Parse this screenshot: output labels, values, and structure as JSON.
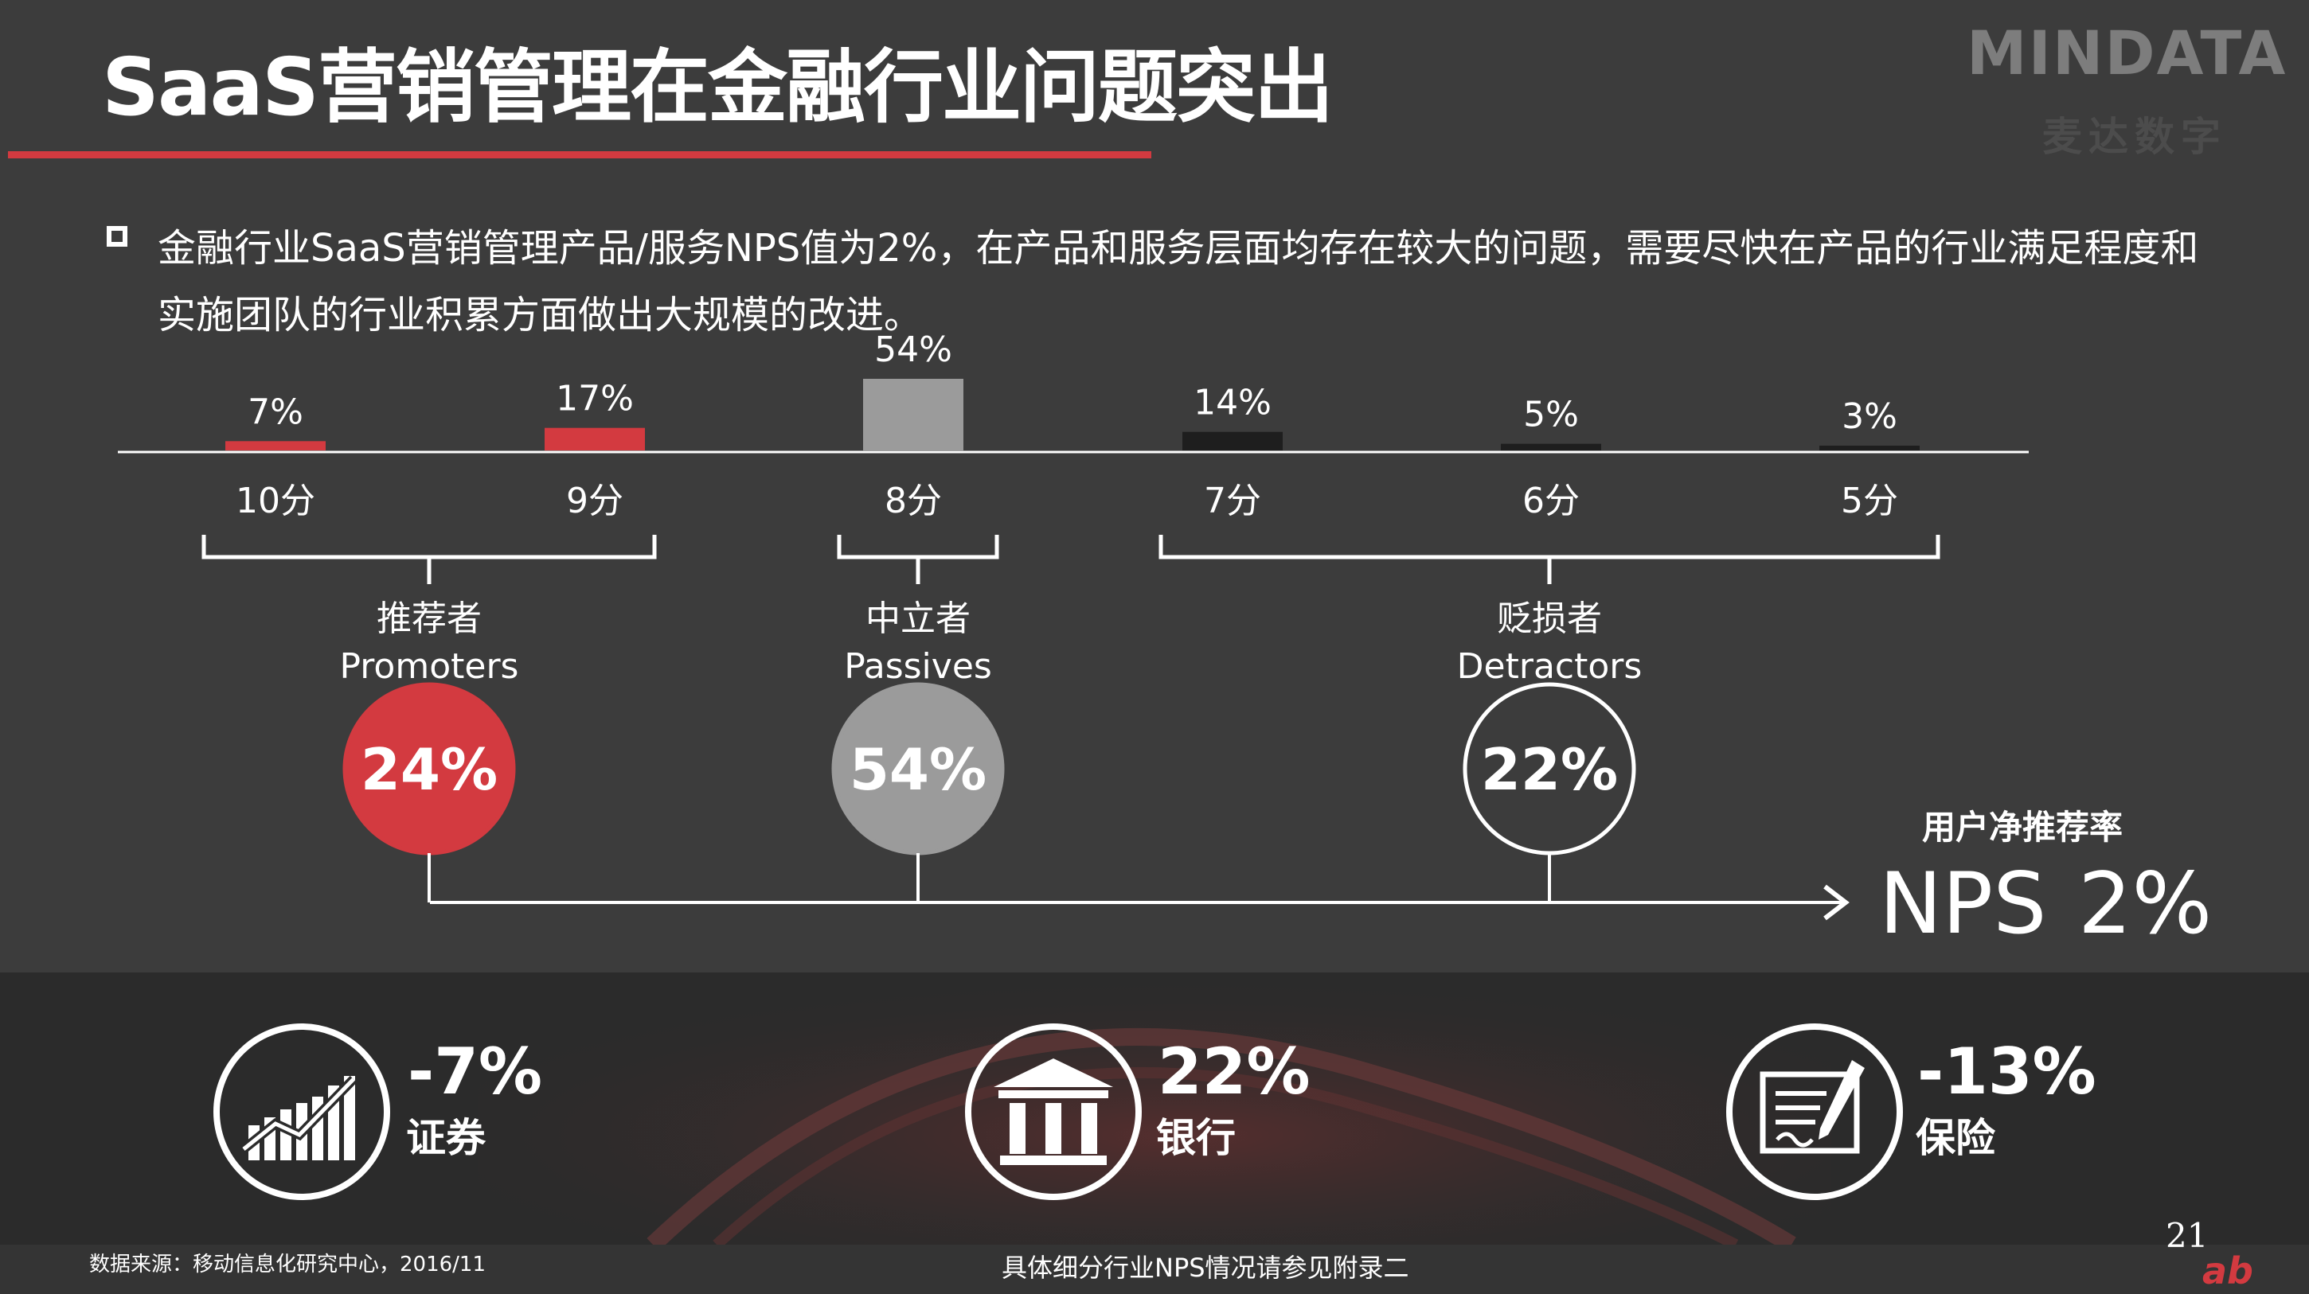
{
  "slide": {
    "title": "SaaS营销管理在金融行业问题突出",
    "page_number": "21",
    "corner_mark": "ab"
  },
  "logo": {
    "text": "MINDATA",
    "subtitle": "麦达数字"
  },
  "bullet": {
    "text": "金融行业SaaS营销管理产品/服务NPS值为2%，在产品和服务层面均存在较大的问题，需要尽快在产品的行业满足程度和实施团队的行业积累方面做出大规模的改进。"
  },
  "chart_data": {
    "type": "bar",
    "categories": [
      "10分",
      "9分",
      "8分",
      "7分",
      "6分",
      "5分"
    ],
    "values": [
      7,
      17,
      54,
      14,
      5,
      3
    ],
    "value_labels": [
      "7%",
      "17%",
      "54%",
      "14%",
      "5%",
      "3%"
    ],
    "bar_colors": [
      "#d33a40",
      "#d33a40",
      "#9b9b9b",
      "#1e1e1e",
      "#1e1e1e",
      "#1e1e1e"
    ],
    "title": "",
    "xlabel": "",
    "ylabel": "",
    "ylim": [
      0,
      54
    ]
  },
  "groups": [
    {
      "name": "推荐者",
      "name_en": "Promoters",
      "value": "24%",
      "fill": "#d33a40",
      "stroke": "#d33a40",
      "range": [
        0,
        1
      ]
    },
    {
      "name": "中立者",
      "name_en": "Passives",
      "value": "54%",
      "fill": "#9b9b9b",
      "stroke": "#9b9b9b",
      "range": [
        2,
        2
      ]
    },
    {
      "name": "贬损者",
      "name_en": "Detractors",
      "value": "22%",
      "fill": "none",
      "stroke": "#ffffff",
      "range": [
        3,
        5
      ]
    }
  ],
  "nps": {
    "caption": "用户净推荐率",
    "label": "NPS",
    "value": "2%"
  },
  "industries": [
    {
      "value": "-7%",
      "label": "证券",
      "icon": "stock-chart-icon"
    },
    {
      "value": "22%",
      "label": "银行",
      "icon": "bank-icon"
    },
    {
      "value": "-13%",
      "label": "保险",
      "icon": "contract-pen-icon"
    }
  ],
  "footer": {
    "source": "数据来源：移动信息化研究中心，2016/11",
    "note": "具体细分行业NPS情况请参见附录二"
  },
  "colors": {
    "background": "#3c3c3c",
    "accent_red": "#d33a40",
    "neutral_gray": "#9b9b9b",
    "band_dark": "#2b2b2b"
  }
}
